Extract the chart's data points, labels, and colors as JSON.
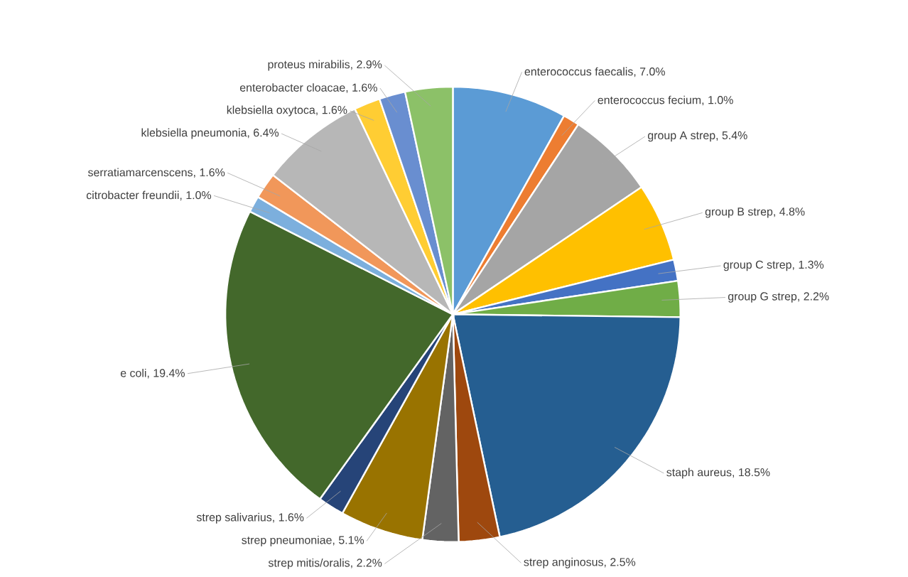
{
  "chart_data": {
    "type": "pie",
    "categories": [
      "enterococcus faecalis, 7.0%",
      "enterococcus fecium, 1.0%",
      "group A strep, 5.4%",
      "group B strep, 4.8%",
      "group C strep, 1.3%",
      "group G strep, 2.2%",
      "staph aureus, 18.5%",
      "strep anginosus, 2.5%",
      "strep mitis/oralis, 2.2%",
      "strep pneumoniae, 5.1%",
      "strep salivarius, 1.6%",
      "e coli, 19.4%",
      "citrobacter freundii, 1.0%",
      "serratiamarcenscens, 1.6%",
      "klebsiella pneumonia, 6.4%",
      "klebsiella oxytoca, 1.6%",
      "enterobacter cloacae, 1.6%",
      "proteus mirabilis, 2.9%"
    ],
    "values": [
      7.0,
      1.0,
      5.4,
      4.8,
      1.3,
      2.2,
      18.5,
      2.5,
      2.2,
      5.1,
      1.6,
      19.4,
      1.0,
      1.6,
      6.4,
      1.6,
      1.6,
      2.9
    ],
    "colors": [
      "#5b9bd5",
      "#ed7d31",
      "#a5a5a5",
      "#ffc000",
      "#4472c4",
      "#70ad47",
      "#255e91",
      "#9e480e",
      "#636363",
      "#997300",
      "#264478",
      "#43682b",
      "#7cafdd",
      "#f1975a",
      "#b7b7b7",
      "#ffcd33",
      "#698ed0",
      "#8cc168"
    ]
  }
}
